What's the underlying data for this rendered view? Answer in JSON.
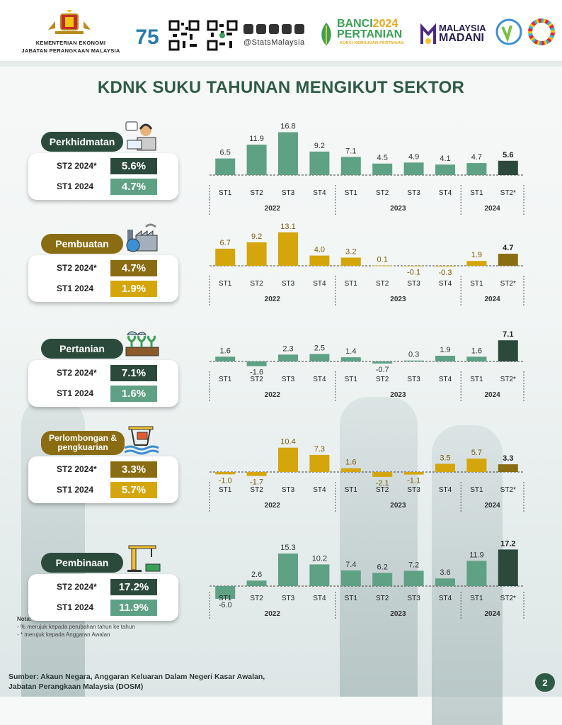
{
  "header": {
    "agency_line1": "KEMENTERIAN EKONOMI",
    "agency_line2": "JABATAN PERANGKAAN MALAYSIA",
    "social_handle": "@StatsMalaysia",
    "banci_line1": "BANCI",
    "banci_year": "2024",
    "banci_line2": "PERTANIAN",
    "banci_tagline": "KUNCI KEMAJUAN PERTANIAN",
    "madani_line1": "MALAYSIA",
    "madani_line2": "MADANI",
    "anniversary_number": "75"
  },
  "title": "KDNK SUKU TAHUNAN MENGIKUT SEKTOR",
  "colors": {
    "green": "#5fa185",
    "green_dark": "#2b4a3c",
    "gold": "#d4a60c",
    "gold_dark": "#8a6d13",
    "title_green": "#2e5b45"
  },
  "sectors": [
    {
      "name": "Perkhidmatan",
      "icon": "customer-service-icon",
      "theme": "green",
      "st2_label": "ST2 2024*",
      "st2_value": "5.6%",
      "st1_label": "ST1 2024",
      "st1_value": "4.7%"
    },
    {
      "name": "Pembuatan",
      "icon": "factory-icon",
      "theme": "gold",
      "st2_label": "ST2 2024*",
      "st2_value": "4.7%",
      "st1_label": "ST1 2024",
      "st1_value": "1.9%"
    },
    {
      "name": "Pertanian",
      "icon": "farm-icon",
      "theme": "green",
      "st2_label": "ST2 2024*",
      "st2_value": "7.1%",
      "st1_label": "ST1 2024",
      "st1_value": "1.6%"
    },
    {
      "name": "Perlombongan & pengkuarian",
      "icon": "oil-rig-icon",
      "theme": "gold",
      "st2_label": "ST2 2024*",
      "st2_value": "3.3%",
      "st1_label": "ST1 2024",
      "st1_value": "5.7%"
    },
    {
      "name": "Pembinaan",
      "icon": "construction-crane-icon",
      "theme": "green",
      "st2_label": "ST2 2024*",
      "st2_value": "17.2%",
      "st1_label": "ST1 2024",
      "st1_value": "11.9%"
    }
  ],
  "chart_data": [
    {
      "type": "bar",
      "sector": "Perkhidmatan",
      "categories": [
        "ST1",
        "ST2",
        "ST3",
        "ST4",
        "ST1",
        "ST2",
        "ST3",
        "ST4",
        "ST1",
        "ST2*"
      ],
      "groups": [
        {
          "label": "2022",
          "count": 4
        },
        {
          "label": "2023",
          "count": 4
        },
        {
          "label": "2024",
          "count": 2
        }
      ],
      "values": [
        6.5,
        11.9,
        16.8,
        9.2,
        7.1,
        4.5,
        4.9,
        4.1,
        4.7,
        5.6
      ],
      "labels": [
        "6.5",
        "11.9",
        "16.8",
        "9.2",
        "7.1",
        "4.5",
        "4.9",
        "4.1",
        "4.7",
        "5.6"
      ]
    },
    {
      "type": "bar",
      "sector": "Pembuatan",
      "categories": [
        "ST1",
        "ST2",
        "ST3",
        "ST4",
        "ST1",
        "ST2",
        "ST3",
        "ST4",
        "ST1",
        "ST2*"
      ],
      "groups": [
        {
          "label": "2022",
          "count": 4
        },
        {
          "label": "2023",
          "count": 4
        },
        {
          "label": "2024",
          "count": 2
        }
      ],
      "values": [
        6.7,
        9.2,
        13.1,
        4.0,
        3.2,
        0.1,
        -0.1,
        -0.3,
        1.9,
        4.7
      ],
      "labels": [
        "6.7",
        "9.2",
        "13.1",
        "4.0",
        "3.2",
        "0.1",
        "-0.1",
        "-0.3",
        "1.9",
        "4.7"
      ]
    },
    {
      "type": "bar",
      "sector": "Pertanian",
      "categories": [
        "ST1",
        "ST2",
        "ST3",
        "ST4",
        "ST1",
        "ST2",
        "ST3",
        "ST4",
        "ST1",
        "ST2*"
      ],
      "groups": [
        {
          "label": "2022",
          "count": 4
        },
        {
          "label": "2023",
          "count": 4
        },
        {
          "label": "2024",
          "count": 2
        }
      ],
      "values": [
        1.6,
        -1.6,
        2.3,
        2.5,
        1.4,
        -0.7,
        0.3,
        1.9,
        1.6,
        7.1
      ],
      "labels": [
        "1.6",
        "-1.6",
        "2.3",
        "2.5",
        "1.4",
        "-0.7",
        "0.3",
        "1.9",
        "1.6",
        "7.1"
      ]
    },
    {
      "type": "bar",
      "sector": "Perlombongan & pengkuarian",
      "categories": [
        "ST1",
        "ST2",
        "ST3",
        "ST4",
        "ST1",
        "ST2",
        "ST3",
        "ST4",
        "ST1",
        "ST2*"
      ],
      "groups": [
        {
          "label": "2022",
          "count": 4
        },
        {
          "label": "2023",
          "count": 4
        },
        {
          "label": "2024",
          "count": 2
        }
      ],
      "values": [
        -1.0,
        -1.7,
        10.4,
        7.3,
        1.6,
        -2.1,
        -1.1,
        3.5,
        5.7,
        3.3
      ],
      "labels": [
        "-1.0",
        "-1.7",
        "10.4",
        "7.3",
        "1.6",
        "-2.1",
        "-1.1",
        "3.5",
        "5.7",
        "3.3"
      ]
    },
    {
      "type": "bar",
      "sector": "Pembinaan",
      "categories": [
        "ST1",
        "ST2",
        "ST3",
        "ST4",
        "ST1",
        "ST2",
        "ST3",
        "ST4",
        "ST1",
        "ST2*"
      ],
      "groups": [
        {
          "label": "2022",
          "count": 4
        },
        {
          "label": "2023",
          "count": 4
        },
        {
          "label": "2024",
          "count": 2
        }
      ],
      "values": [
        -6.0,
        2.6,
        15.3,
        10.2,
        7.4,
        6.2,
        7.2,
        3.6,
        11.9,
        17.2
      ],
      "labels": [
        "-6.0",
        "2.6",
        "15.3",
        "10.2",
        "7.4",
        "6.2",
        "7.2",
        "3.6",
        "11.9",
        "17.2"
      ]
    }
  ],
  "notes": {
    "heading": "Nota:",
    "line1": "- % merujuk kepada perubahan tahun ke tahun",
    "line2": "- * merujuk kepada Anggaran Awalan"
  },
  "source": {
    "line1": "Sumber: Akaun Negara, Anggaran Keluaran Dalam Negeri Kasar Awalan,",
    "line2": "Jabatan Perangkaan Malaysia (DOSM)"
  },
  "page_number": "2"
}
